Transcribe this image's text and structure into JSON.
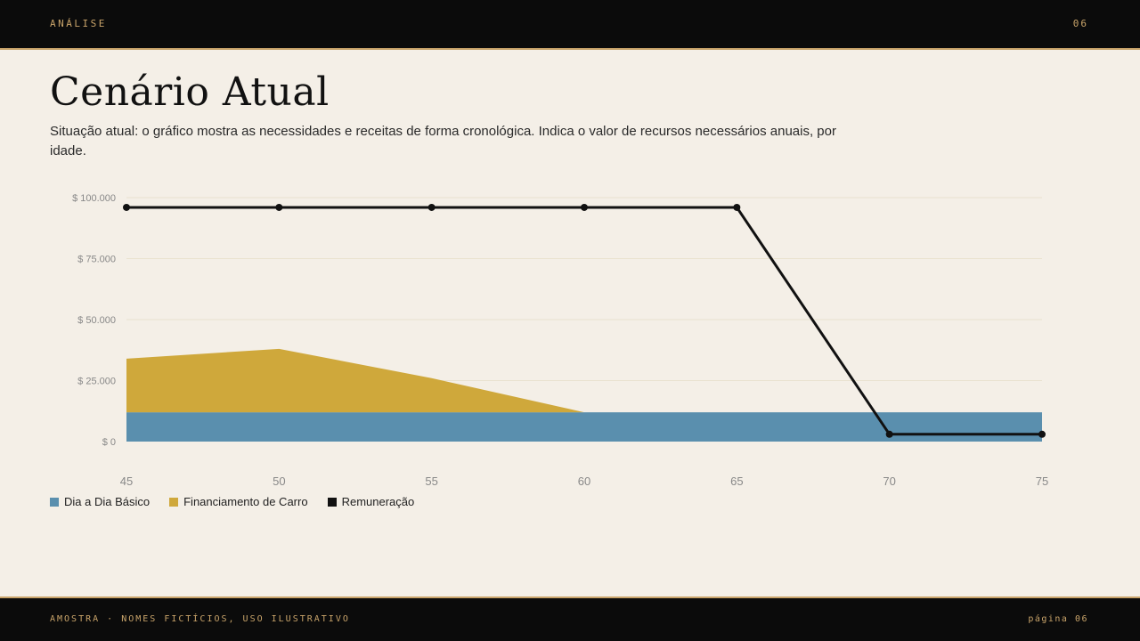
{
  "header": {
    "section": "ANÁLISE",
    "page_number": "06"
  },
  "title": "Cenário Atual",
  "subtitle": "Situação atual: o gráfico mostra as necessidades e receitas de forma cronológica. Indica o valor de recursos necessários anuais, por idade.",
  "chart_data": {
    "type": "area",
    "x": [
      45,
      50,
      55,
      60,
      65,
      70,
      75
    ],
    "ylim": [
      0,
      100000
    ],
    "yticks": [
      0,
      25000,
      50000,
      75000,
      100000
    ],
    "ytick_labels": [
      "$ 0",
      "$ 25.000",
      "$ 50.000",
      "$ 75.000",
      "$ 100.000"
    ],
    "series": [
      {
        "name": "Dia a Dia Básico",
        "kind": "stacked-area",
        "color": "#5a8fae",
        "values": [
          12000,
          12000,
          12000,
          12000,
          12000,
          12000,
          12000
        ]
      },
      {
        "name": "Financiamento de Carro",
        "kind": "stacked-area",
        "color": "#cfa83b",
        "values": [
          22000,
          26000,
          14000,
          0,
          0,
          0,
          0
        ]
      },
      {
        "name": "Remuneração",
        "kind": "line",
        "color": "#111111",
        "values": [
          96000,
          96000,
          96000,
          96000,
          96000,
          3000,
          3000
        ]
      }
    ],
    "grid": true,
    "legend": "bottom-left"
  },
  "footer": {
    "left": "AMOSTRA · NOMES FICTÍCIOS, USO ILUSTRATIVO",
    "right": "página 06"
  }
}
